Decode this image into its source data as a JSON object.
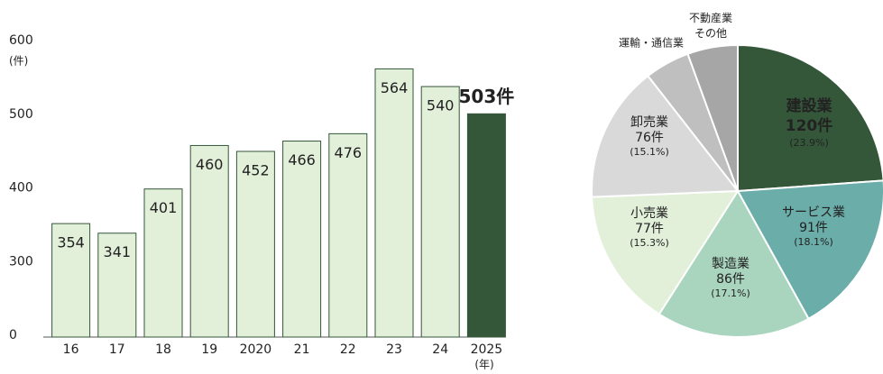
{
  "chart_data": [
    {
      "type": "bar",
      "y_unit_label": "(件)",
      "x_unit_label": "(年)",
      "categories": [
        "16",
        "17",
        "18",
        "19",
        "2020",
        "21",
        "22",
        "23",
        "24",
        "2025"
      ],
      "values": [
        354,
        341,
        401,
        460,
        452,
        466,
        476,
        564,
        540,
        503
      ],
      "value_labels": [
        "354",
        "341",
        "401",
        "460",
        "452",
        "466",
        "476",
        "564",
        "540",
        "503件"
      ],
      "colors": [
        "#e2efd9",
        "#e2efd9",
        "#e2efd9",
        "#e2efd9",
        "#e2efd9",
        "#e2efd9",
        "#e2efd9",
        "#e2efd9",
        "#e2efd9",
        "#34573a"
      ],
      "ylim": [
        0,
        600
      ],
      "yticks": [
        0,
        300,
        400,
        500,
        600
      ],
      "broken_axis": true
    },
    {
      "type": "pie",
      "categories": [
        "建設業",
        "サービス業",
        "製造業",
        "小売業",
        "卸売業",
        "運輸・通信業",
        "不動産業\nその他"
      ],
      "values": [
        120,
        91,
        86,
        77,
        76,
        25,
        28
      ],
      "value_labels": [
        "120件",
        "91件",
        "86件",
        "77件",
        "76件",
        null,
        null
      ],
      "percent_labels": [
        "(23.9%)",
        "(18.1%)",
        "(17.1%)",
        "(15.3%)",
        "(15.1%)",
        null,
        null
      ],
      "colors": [
        "#34573a",
        "#6aada9",
        "#a9d5bf",
        "#e2efd9",
        "#d9d9d9",
        "#bfbfbf",
        "#a6a6a6"
      ]
    }
  ]
}
